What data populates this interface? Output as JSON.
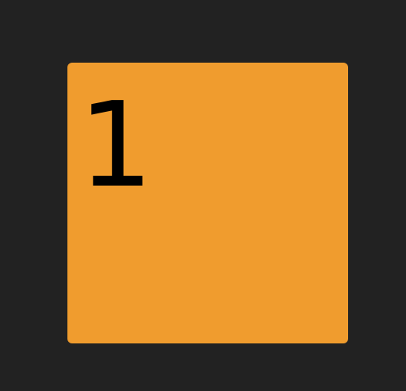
{
  "tile": {
    "number": "1",
    "color": "#F09C2E",
    "text_color": "#000000"
  },
  "background_color": "#222222"
}
